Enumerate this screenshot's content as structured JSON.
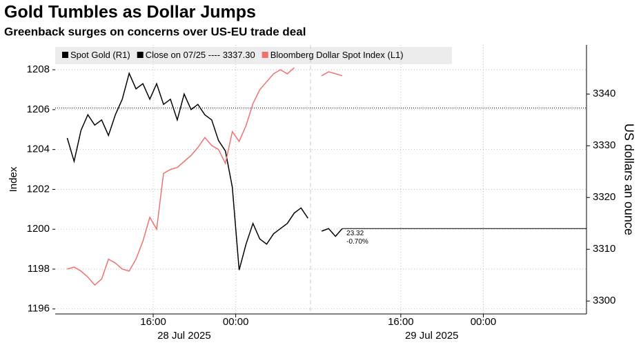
{
  "chart_data": {
    "type": "line",
    "title": "Gold Tumbles as Dollar Jumps",
    "subtitle": "Greenback surges on concerns over US-EU trade deal",
    "ylabel": "Index",
    "y2label": "US dollars an ounce",
    "x": [
      "2025-07-28T07:40",
      "2025-07-28T08:20",
      "2025-07-28T09:00",
      "2025-07-28T09:40",
      "2025-07-28T10:20",
      "2025-07-28T11:00",
      "2025-07-28T11:40",
      "2025-07-28T12:20",
      "2025-07-28T13:00",
      "2025-07-28T13:40",
      "2025-07-28T14:20",
      "2025-07-28T15:00",
      "2025-07-28T15:40",
      "2025-07-28T16:20",
      "2025-07-28T17:00",
      "2025-07-28T17:40",
      "2025-07-28T18:20",
      "2025-07-28T19:00",
      "2025-07-28T19:40",
      "2025-07-28T20:20",
      "2025-07-28T21:00",
      "2025-07-28T21:40",
      "2025-07-28T22:20",
      "2025-07-28T23:00",
      "2025-07-28T23:40",
      "2025-07-29T00:20",
      "2025-07-29T01:00",
      "2025-07-29T01:40",
      "2025-07-29T02:20",
      "2025-07-29T03:00",
      "2025-07-29T03:40",
      "2025-07-29T04:20",
      "2025-07-29T05:00",
      "2025-07-29T05:40",
      "2025-07-29T06:20",
      "2025-07-29T07:00",
      "2025-07-29T07:40",
      "2025-07-29T08:20",
      "2025-07-29T09:00",
      "2025-07-29T09:40",
      "2025-07-29T10:20"
    ],
    "series": [
      {
        "name": "Spot Gold (R1)",
        "color": "#000000",
        "axis": "y2",
        "values": [
          3331.5,
          3327,
          3333,
          3336,
          3334,
          3335,
          3332,
          3336,
          3339,
          3344,
          3341,
          3342,
          3339,
          3342,
          3338,
          3339,
          3335,
          3340,
          3337,
          3338,
          3336,
          3335,
          3331,
          3329,
          3322,
          3306,
          3311,
          3315,
          3312,
          3311,
          3313,
          3314,
          3315,
          3317,
          3318,
          3316,
          null,
          3313.5,
          3314,
          3312.5,
          3314
        ]
      },
      {
        "name": "Bloomberg Dollar Spot Index (L1)",
        "color": "#f07070",
        "values": [
          1198.0,
          1198.1,
          1197.9,
          1197.6,
          1197.2,
          1197.5,
          1198.5,
          1198.3,
          1198.0,
          1197.9,
          1198.5,
          1199.4,
          1200.6,
          1200.0,
          1202.8,
          1203.0,
          1203.1,
          1203.4,
          1203.7,
          1204.1,
          1204.6,
          1204.2,
          1204.0,
          1203.3,
          1204.9,
          1204.4,
          1205.2,
          1206.3,
          1207.0,
          1207.4,
          1207.8,
          1208.0,
          1207.8,
          1208.1,
          null,
          null,
          null,
          1207.7,
          1207.9,
          1207.8,
          1207.7
        ]
      }
    ],
    "reference_line": {
      "label": "Close on 07/25 ---- 3337.30",
      "value": 3337.3,
      "color": "#000000",
      "axis": "y2"
    },
    "annotations": [
      "23.32",
      "-0.70%"
    ],
    "xlim": [
      "2025-07-28T06:30",
      "2025-07-30T10:00"
    ],
    "xticks": [
      {
        "value": "2025-07-28T16:00",
        "label": "16:00"
      },
      {
        "value": "2025-07-29T00:00",
        "label": "00:00"
      },
      {
        "value": "2025-07-29T16:00",
        "label": "16:00"
      },
      {
        "value": "2025-07-30T00:00",
        "label": "00:00"
      }
    ],
    "date_labels": [
      {
        "value": "2025-07-28T19:00",
        "label": "28 Jul 2025"
      },
      {
        "value": "2025-07-29T19:00",
        "label": "29 Jul 2025"
      }
    ],
    "ylim": [
      1195.75,
      1209.25
    ],
    "yticks": [
      1196,
      1198,
      1200,
      1202,
      1204,
      1206,
      1208
    ],
    "y2lim": [
      3297.5,
      3349.5
    ],
    "y2ticks": [
      3300,
      3310,
      3320,
      3330,
      3340
    ],
    "grid": true
  }
}
